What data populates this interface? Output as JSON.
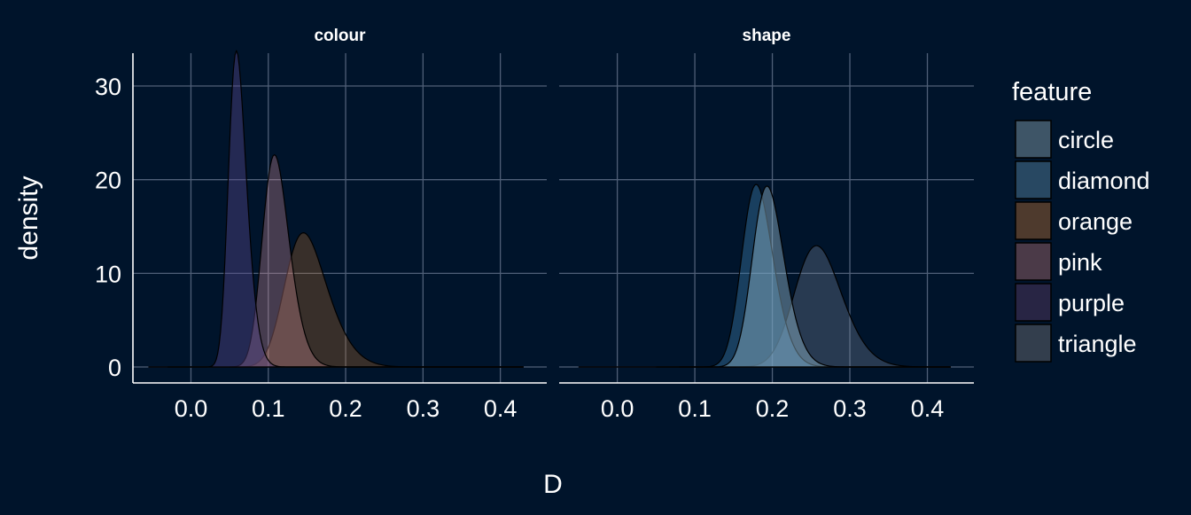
{
  "chart_data": {
    "type": "area",
    "xlabel": "D",
    "ylabel": "density",
    "xlim": [
      -0.075,
      0.46
    ],
    "ylim": [
      -1.7,
      33.5
    ],
    "x_ticks": [
      0.0,
      0.1,
      0.2,
      0.3,
      0.4
    ],
    "x_tick_labels": [
      "0.0",
      "0.1",
      "0.2",
      "0.3",
      "0.4"
    ],
    "y_ticks": [
      0,
      10,
      20,
      30
    ],
    "y_tick_labels": [
      "0",
      "10",
      "20",
      "30"
    ],
    "grid": true,
    "legend": {
      "title": "feature",
      "position": "right",
      "entries": [
        {
          "name": "circle",
          "color": "#3e5567"
        },
        {
          "name": "diamond",
          "color": "#284862"
        },
        {
          "name": "orange",
          "color": "#4e3a2d"
        },
        {
          "name": "pink",
          "color": "#4b3a48"
        },
        {
          "name": "purple",
          "color": "#282544"
        },
        {
          "name": "triangle",
          "color": "#333e4d"
        }
      ]
    },
    "panels": [
      {
        "title": "colour",
        "series": [
          {
            "name": "orange",
            "mean": 0.153,
            "sd": 0.029,
            "skew": 2.0,
            "x_range": [
              0.05,
              0.43
            ],
            "color": "#d97f2a",
            "opacity": 0.26
          },
          {
            "name": "pink",
            "mean": 0.112,
            "sd": 0.0182,
            "skew": 1.8,
            "x_range": [
              -0.03,
              0.43
            ],
            "color": "#ce8b96",
            "opacity": 0.34
          },
          {
            "name": "purple",
            "mean": 0.062,
            "sd": 0.0123,
            "skew": 2.0,
            "x_range": [
              -0.055,
              0.43
            ],
            "color": "#5a4891",
            "opacity": 0.4
          }
        ]
      },
      {
        "title": "shape",
        "series": [
          {
            "name": "triangle",
            "mean": 0.262,
            "sd": 0.0315,
            "skew": 1.5,
            "x_range": [
              0.08,
              0.43
            ],
            "color": "#7b8ba3",
            "opacity": 0.32
          },
          {
            "name": "diamond",
            "mean": 0.183,
            "sd": 0.021,
            "skew": 1.6,
            "x_range": [
              -0.05,
              0.43
            ],
            "color": "#3e7fae",
            "opacity": 0.4
          },
          {
            "name": "circle",
            "mean": 0.197,
            "sd": 0.0212,
            "skew": 1.6,
            "x_range": [
              0.05,
              0.43
            ],
            "color": "#8fb4c9",
            "opacity": 0.46
          }
        ]
      }
    ]
  }
}
